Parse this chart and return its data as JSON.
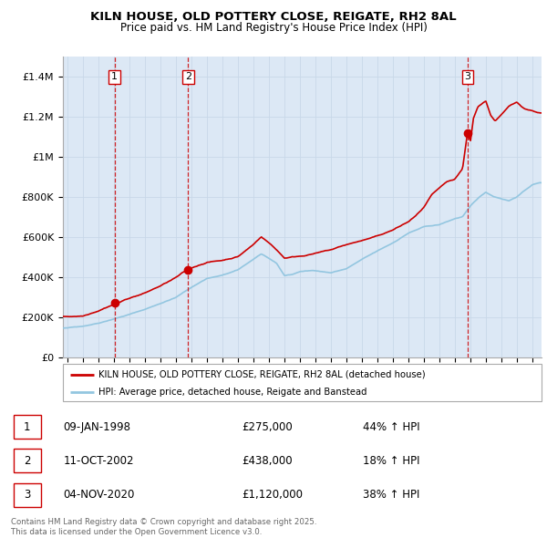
{
  "title": "KILN HOUSE, OLD POTTERY CLOSE, REIGATE, RH2 8AL",
  "subtitle": "Price paid vs. HM Land Registry's House Price Index (HPI)",
  "transactions": [
    {
      "num": 1,
      "date_str": "09-JAN-1998",
      "date_val": 1998.03,
      "price": 275000,
      "pct": "44%",
      "dir": "↑"
    },
    {
      "num": 2,
      "date_str": "11-OCT-2002",
      "date_val": 2002.78,
      "price": 438000,
      "pct": "18%",
      "dir": "↑"
    },
    {
      "num": 3,
      "date_str": "04-NOV-2020",
      "date_val": 2020.84,
      "price": 1120000,
      "pct": "38%",
      "dir": "↑"
    }
  ],
  "legend_house": "KILN HOUSE, OLD POTTERY CLOSE, REIGATE, RH2 8AL (detached house)",
  "legend_hpi": "HPI: Average price, detached house, Reigate and Banstead",
  "footer_line1": "Contains HM Land Registry data © Crown copyright and database right 2025.",
  "footer_line2": "This data is licensed under the Open Government Licence v3.0.",
  "hpi_color": "#93C6E0",
  "house_color": "#CC0000",
  "dot_color": "#CC0000",
  "vline_color": "#CC0000",
  "bg_shade_color": "#DCE8F5",
  "grid_color": "#C8D8E8",
  "ylim": [
    0,
    1500000
  ],
  "xlim_start": 1994.7,
  "xlim_end": 2025.6,
  "yticks": [
    0,
    200000,
    400000,
    600000,
    800000,
    1000000,
    1200000,
    1400000
  ],
  "ylabels": [
    "£0",
    "£200K",
    "£400K",
    "£600K",
    "£800K",
    "£1M",
    "£1.2M",
    "£1.4M"
  ]
}
